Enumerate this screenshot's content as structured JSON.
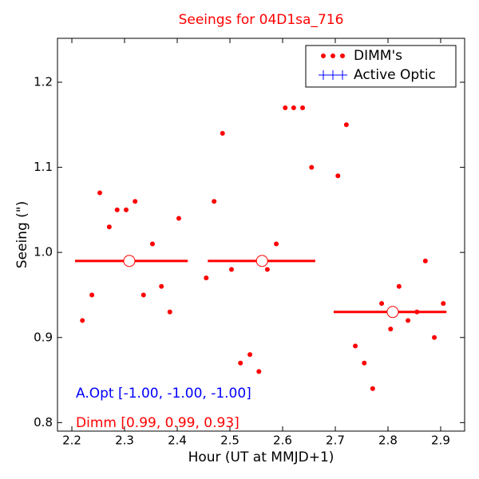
{
  "chart_data": {
    "type": "scatter",
    "title": "Seeings for 04D1sa_716",
    "xlabel": "Hour (UT at MMJD+1)",
    "ylabel": "Seeing (\")",
    "xlim": [
      2.1727,
      2.9455
    ],
    "ylim": [
      0.79,
      1.2516
    ],
    "xticks": [
      2.2,
      2.3,
      2.4,
      2.5,
      2.6,
      2.7,
      2.8,
      2.9
    ],
    "yticks": [
      0.8,
      0.9,
      {
        "value": 1,
        "label": "1.0"
      },
      1.1,
      1.2
    ],
    "grid": false,
    "legend": "upper right",
    "series": [
      {
        "name": "DIMM's",
        "color": "#ff0000",
        "x": [
          2.22,
          2.238,
          2.253,
          2.271,
          2.286,
          2.303,
          2.32,
          2.336,
          2.353,
          2.37,
          2.386,
          2.403,
          2.455,
          2.47,
          2.486,
          2.503,
          2.52,
          2.538,
          2.555,
          2.571,
          2.588,
          2.605,
          2.621,
          2.638,
          2.655,
          2.705,
          2.721,
          2.738,
          2.755,
          2.771,
          2.788,
          2.805,
          2.821,
          2.838,
          2.855,
          2.871,
          2.888,
          2.905
        ],
        "values": [
          0.92,
          0.95,
          1.07,
          1.03,
          1.05,
          1.05,
          1.06,
          0.95,
          1.01,
          0.96,
          0.93,
          1.04,
          0.97,
          1.06,
          1.14,
          0.98,
          0.87,
          0.88,
          0.86,
          0.98,
          1.01,
          1.17,
          1.17,
          1.17,
          1.1,
          1.09,
          1.15,
          0.89,
          0.87,
          0.84,
          0.94,
          0.91,
          0.96,
          0.92,
          0.93,
          0.99,
          0.9,
          0.94
        ]
      },
      {
        "name": "Active Optic",
        "color": "#0000ff",
        "x": [],
        "values": []
      }
    ],
    "segments": [
      {
        "x": [
          2.206,
          2.42
        ],
        "value": 0.99,
        "center": 2.309
      },
      {
        "x": [
          2.458,
          2.662
        ],
        "value": 0.99,
        "center": 2.561
      },
      {
        "x": [
          2.697,
          2.911
        ],
        "value": 0.93,
        "center": 2.809
      }
    ],
    "segment_color": "#ff0000",
    "annotations": [
      {
        "text": "A.Opt [-1.00, -1.00, -1.00]",
        "color": "#0000ff"
      },
      {
        "text": "Dimm [0.99, 0.99, 0.93]",
        "color": "#ff0000"
      }
    ]
  }
}
